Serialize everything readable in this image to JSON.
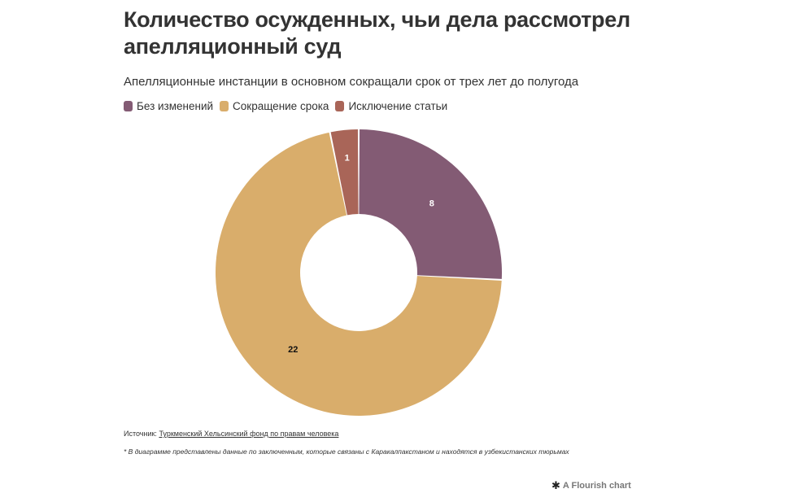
{
  "header": {
    "title": "Количество осужденных, чьи дела рассмотрел апелляционный суд",
    "subtitle": "Апелляционные инстанции в основном сокращали срок от трех лет до полугода"
  },
  "legend": [
    {
      "label": "Без изменений",
      "color": "#835b74"
    },
    {
      "label": "Сокращение срока",
      "color": "#d9ad6b"
    },
    {
      "label": "Исключение статьи",
      "color": "#a96558"
    }
  ],
  "chart_data": {
    "type": "pie",
    "donut": true,
    "categories": [
      "Без изменений",
      "Сокращение срока",
      "Исключение статьи"
    ],
    "values": [
      8,
      22,
      1
    ],
    "colors": [
      "#835b74",
      "#d9ad6b",
      "#a96558"
    ],
    "data_labels": [
      "8",
      "22",
      "1"
    ],
    "legend_position": "top-left"
  },
  "footer": {
    "source_prefix": "Источник: ",
    "source_link": "Туркменский Хельсинский фонд по правам человека",
    "note": "* В диаграмме представлены данные по заключенным, которые связаны с Каракалпакстаном и находятся в узбекистанских тюрьмах",
    "credit": "A Flourish chart",
    "credit_icon": "flourish-star-icon"
  }
}
